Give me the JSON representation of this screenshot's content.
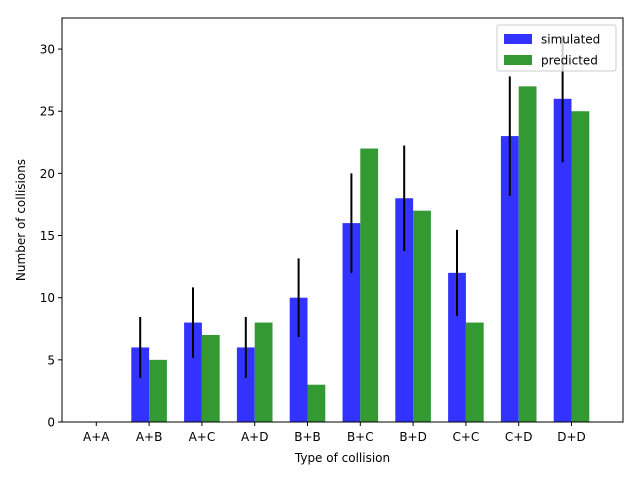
{
  "chart_data": {
    "type": "bar",
    "title": "",
    "xlabel": "Type of collision",
    "ylabel": "Number of collisions",
    "categories": [
      "A+A",
      "A+B",
      "A+C",
      "A+D",
      "B+B",
      "B+C",
      "B+D",
      "C+C",
      "C+D",
      "D+D"
    ],
    "ylim": [
      0,
      32.5
    ],
    "yticks": [
      0,
      5,
      10,
      15,
      20,
      25,
      30
    ],
    "grid": false,
    "legend_position": "top-right",
    "series": [
      {
        "name": "simulated",
        "color": "#3333ff",
        "values": [
          0,
          6,
          8,
          6,
          10,
          16,
          18,
          12,
          23,
          26
        ],
        "errors": [
          0,
          2.45,
          2.83,
          2.45,
          3.16,
          4.0,
          4.24,
          3.46,
          4.8,
          5.1
        ]
      },
      {
        "name": "predicted",
        "color": "#339933",
        "values": [
          0,
          5,
          7,
          8,
          3,
          22,
          17,
          8,
          27,
          25
        ]
      }
    ]
  }
}
